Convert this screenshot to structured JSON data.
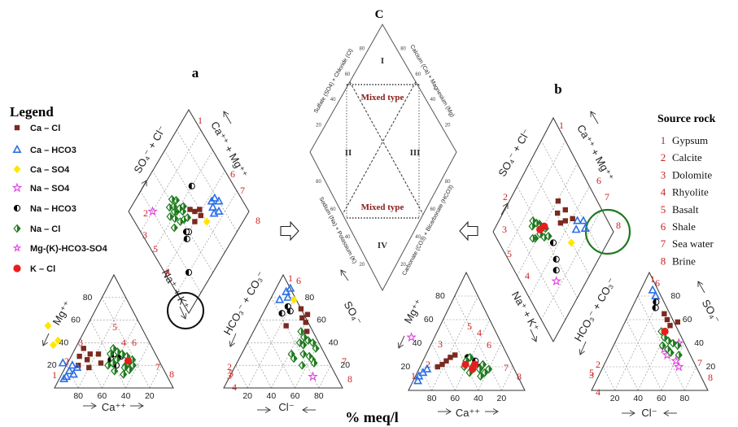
{
  "chart_data": {
    "type": "scatter",
    "kind": "piper_diagram",
    "panel_labels": {
      "a": "a",
      "b": "b",
      "c": "C"
    },
    "bottom_label": "% meq/l",
    "legend": {
      "title": "Legend",
      "entries": [
        {
          "key": "cacl",
          "label": "Ca – Cl",
          "marker": "square",
          "color": "#7b2a20"
        },
        {
          "key": "cahco3",
          "label": "Ca – HCO3",
          "marker": "triangle",
          "color": "#2b6fe8"
        },
        {
          "key": "caso4",
          "label": "Ca – SO4",
          "marker": "diamond",
          "color": "#ffe600"
        },
        {
          "key": "naso4",
          "label": "Na – SO4",
          "marker": "star",
          "color": "#e040e0"
        },
        {
          "key": "nahco3",
          "label": "Na – HCO3",
          "marker": "halfcircle",
          "color": "#000000"
        },
        {
          "key": "nacl",
          "label": "Na – Cl",
          "marker": "diamond-outline",
          "color": "#1f7a1f"
        },
        {
          "key": "mgkhco3so4",
          "label": "Mg-(K)-HCO3-SO4",
          "marker": "star-small",
          "color": "#e040e0"
        },
        {
          "key": "kcl",
          "label": "K – Cl",
          "marker": "circle",
          "color": "#e61e1e"
        }
      ]
    },
    "source_rock": {
      "title": "Source rock",
      "items": [
        {
          "num": "1",
          "name": "Gypsum"
        },
        {
          "num": "2",
          "name": "Calcite"
        },
        {
          "num": "3",
          "name": "Dolomite"
        },
        {
          "num": "4",
          "name": "Rhyolite"
        },
        {
          "num": "5",
          "name": "Basalt"
        },
        {
          "num": "6",
          "name": "Shale"
        },
        {
          "num": "7",
          "name": "Sea water"
        },
        {
          "num": "8",
          "name": "Brine"
        }
      ]
    },
    "axis_labels": {
      "mg": "Mg⁺⁺",
      "ca": "Ca⁺⁺",
      "nak": "Na⁺ + K⁺",
      "hco3co3": "HCO₃⁻ + CO₃⁻",
      "so4": "SO₄⁻",
      "cl": "Cl⁻",
      "so4cl": "SO₄⁻ + Cl⁻",
      "camg": "Ca⁺⁺ + Mg⁺⁺"
    },
    "ticks": [
      "20",
      "40",
      "60",
      "80"
    ],
    "diamond_c": {
      "zones": [
        "I",
        "II",
        "III",
        "IV"
      ],
      "mixed_label": "Mixed type",
      "edge_labels": {
        "top_left": "Sulfate (SO4) + Chloride (Cl)",
        "top_right": "Calcium (Ca) + Magnesium (Mg)",
        "bottom_left": "Sodium (Na) + Potassium (K)",
        "bottom_right": "Carbonate (CO3) + Bicarbonate (HCO3)"
      },
      "ticks": [
        "20",
        "40",
        "60",
        "80"
      ]
    },
    "source_numbers": [
      "1",
      "2",
      "3",
      "4",
      "5",
      "6",
      "7",
      "8"
    ],
    "plots": {
      "a": {
        "cation": {
          "cacl": [
            [
              55,
              30
            ],
            [
              60,
              25
            ],
            [
              65,
              28
            ],
            [
              50,
              22
            ],
            [
              48,
              30
            ],
            [
              62,
              18
            ],
            [
              58,
              35
            ],
            [
              70,
              20
            ]
          ],
          "cahco3": [
            [
              75,
              20
            ],
            [
              80,
              15
            ],
            [
              85,
              10
            ],
            [
              78,
              12
            ],
            [
              72,
              18
            ],
            [
              88,
              8
            ],
            [
              82,
              22
            ]
          ],
          "caso4": [
            [
              78,
              55
            ],
            [
              82,
              38
            ],
            [
              76,
              42
            ]
          ],
          "nahco3": [
            [
              40,
              25
            ],
            [
              35,
              30
            ],
            [
              30,
              28
            ],
            [
              38,
              20
            ]
          ],
          "nacl": [
            [
              30,
              20
            ],
            [
              35,
              25
            ],
            [
              40,
              22
            ],
            [
              28,
              30
            ],
            [
              25,
              28
            ],
            [
              32,
              18
            ],
            [
              38,
              30
            ],
            [
              42,
              15
            ],
            [
              27,
              22
            ],
            [
              22,
              25
            ],
            [
              33,
              35
            ],
            [
              36,
              12
            ],
            [
              45,
              20
            ],
            [
              24,
              20
            ],
            [
              29,
              16
            ],
            [
              31,
              32
            ]
          ],
          "kcl": [
            [
              26,
              24
            ]
          ]
        },
        "anion": {
          "cahco3": [
            [
              10,
              85
            ],
            [
              14,
              80
            ],
            [
              8,
              78
            ],
            [
              12,
              88
            ]
          ],
          "cacl": [
            [
              30,
              70
            ],
            [
              35,
              62
            ],
            [
              40,
              58
            ],
            [
              25,
              55
            ],
            [
              45,
              50
            ],
            [
              38,
              65
            ]
          ],
          "caso4": [
            [
              20,
              78
            ]
          ],
          "naso4": [
            [
              70,
              10
            ]
          ],
          "nahco3": [
            [
              18,
              72
            ],
            [
              22,
              68
            ],
            [
              16,
              66
            ]
          ],
          "nacl": [
            [
              40,
              50
            ],
            [
              45,
              45
            ],
            [
              50,
              42
            ],
            [
              55,
              40
            ],
            [
              60,
              35
            ],
            [
              48,
              38
            ],
            [
              52,
              30
            ],
            [
              58,
              28
            ],
            [
              62,
              25
            ],
            [
              42,
              30
            ],
            [
              46,
              26
            ],
            [
              65,
              22
            ],
            [
              56,
              20
            ],
            [
              44,
              40
            ]
          ]
        },
        "diamond": {
          "cahco3": [
            [
              30,
              80
            ],
            [
              35,
              78
            ],
            [
              25,
              75
            ],
            [
              32,
              72
            ],
            [
              28,
              70
            ],
            [
              36,
              74
            ]
          ],
          "cacl": [
            [
              45,
              55
            ],
            [
              40,
              50
            ],
            [
              42,
              60
            ],
            [
              38,
              58
            ],
            [
              50,
              52
            ]
          ],
          "caso4": [
            [
              30,
              60
            ]
          ],
          "naso4": [
            [
              80,
              20
            ]
          ],
          "nahco3": [
            [
              40,
              40
            ],
            [
              38,
              35
            ],
            [
              42,
              38
            ],
            [
              60,
              65
            ],
            [
              20,
              20
            ]
          ],
          "nacl": [
            [
              55,
              45
            ],
            [
              60,
              40
            ],
            [
              58,
              35
            ],
            [
              62,
              38
            ],
            [
              65,
              40
            ],
            [
              50,
              42
            ],
            [
              57,
              48
            ],
            [
              63,
              32
            ],
            [
              52,
              38
            ],
            [
              66,
              45
            ],
            [
              54,
              30
            ],
            [
              68,
              36
            ],
            [
              59,
              44
            ],
            [
              48,
              46
            ],
            [
              70,
              42
            ]
          ]
        }
      },
      "b": {
        "cation": {
          "cahco3": [
            [
              85,
              12
            ],
            [
              80,
              15
            ],
            [
              75,
              18
            ],
            [
              88,
              8
            ]
          ],
          "cacl": [
            [
              60,
              22
            ],
            [
              55,
              25
            ],
            [
              50,
              28
            ],
            [
              65,
              20
            ],
            [
              45,
              30
            ]
          ],
          "naso4": [
            [
              75,
              45
            ]
          ],
          "nahco3": [
            [
              30,
              25
            ],
            [
              35,
              28
            ],
            [
              28,
              20
            ]
          ],
          "nacl": [
            [
              35,
              20
            ],
            [
              30,
              18
            ],
            [
              40,
              15
            ],
            [
              25,
              22
            ],
            [
              38,
              25
            ],
            [
              32,
              12
            ],
            [
              42,
              20
            ],
            [
              27,
              15
            ],
            [
              33,
              28
            ],
            [
              22,
              18
            ]
          ],
          "kcl": [
            [
              36,
              18
            ],
            [
              40,
              22
            ],
            [
              32,
              22
            ]
          ]
        },
        "anion": {
          "cahco3": [
            [
              10,
              85
            ],
            [
              15,
              80
            ]
          ],
          "cacl": [
            [
              30,
              65
            ],
            [
              35,
              60
            ],
            [
              40,
              55
            ],
            [
              45,
              58
            ]
          ],
          "naso4": [
            [
              55,
              40
            ],
            [
              50,
              30
            ],
            [
              60,
              25
            ],
            [
              45,
              35
            ],
            [
              65,
              20
            ]
          ],
          "nahco3": [
            [
              20,
              70
            ],
            [
              18,
              75
            ]
          ],
          "nacl": [
            [
              40,
              45
            ],
            [
              45,
              42
            ],
            [
              50,
              40
            ],
            [
              55,
              38
            ],
            [
              35,
              50
            ],
            [
              48,
              35
            ],
            [
              52,
              32
            ],
            [
              60,
              30
            ],
            [
              42,
              38
            ]
          ],
          "kcl": [
            [
              38,
              50
            ]
          ]
        },
        "diamond": {
          "cahco3": [
            [
              30,
              80
            ],
            [
              35,
              75
            ],
            [
              25,
              78
            ],
            [
              32,
              70
            ]
          ],
          "cacl": [
            [
              50,
              70
            ],
            [
              45,
              65
            ],
            [
              55,
              62
            ],
            [
              60,
              68
            ],
            [
              48,
              60
            ],
            [
              40,
              72
            ]
          ],
          "naso4": [
            [
              25,
              30
            ]
          ],
          "caso4": [
            [
              30,
              60
            ]
          ],
          "nahco3": [
            [
              35,
              40
            ],
            [
              30,
              35
            ],
            [
              45,
              45
            ]
          ],
          "nacl": [
            [
              55,
              40
            ],
            [
              60,
              38
            ],
            [
              65,
              42
            ],
            [
              58,
              45
            ],
            [
              70,
              35
            ],
            [
              62,
              32
            ],
            [
              68,
              40
            ],
            [
              52,
              44
            ],
            [
              72,
              38
            ],
            [
              64,
              30
            ]
          ],
          "kcl": [
            [
              60,
              45
            ],
            [
              62,
              40
            ]
          ]
        }
      }
    }
  }
}
